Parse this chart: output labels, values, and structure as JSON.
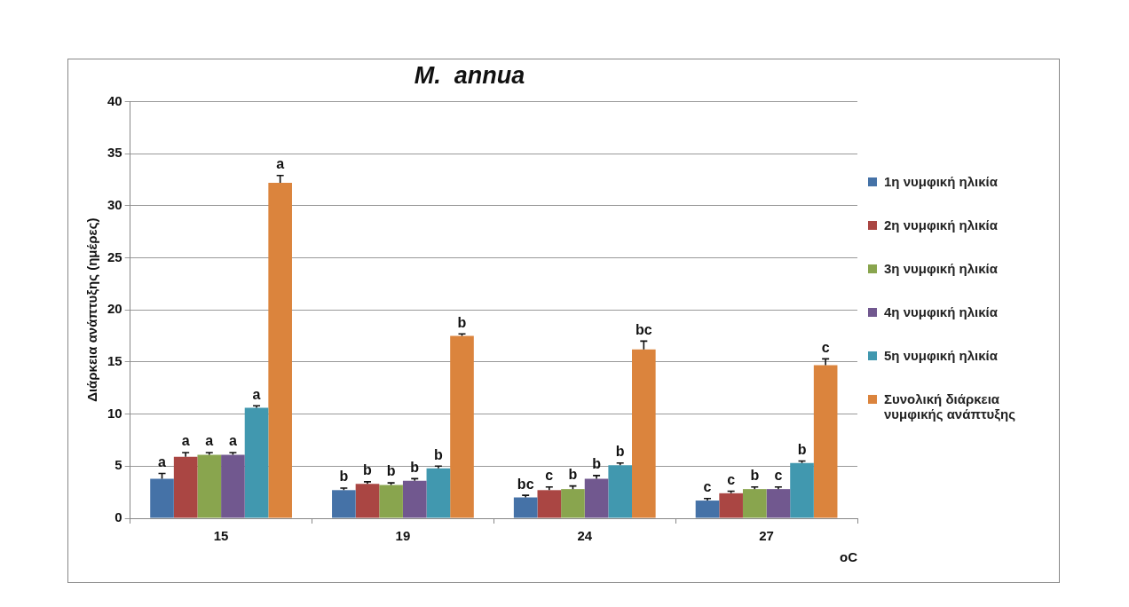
{
  "chart_data": {
    "type": "bar",
    "title": "M.  annua",
    "ylabel": "Διάρκεια ανάπτυξης (ημέρες)",
    "xlabel": "oC",
    "categories": [
      "15",
      "19",
      "24",
      "27"
    ],
    "ylim": [
      0,
      40
    ],
    "yticks": [
      0,
      5,
      10,
      15,
      20,
      25,
      30,
      35,
      40
    ],
    "grid": "y",
    "legend": "right",
    "series": [
      {
        "name": "1η νυμφική ηλικία",
        "color": "#4572a7",
        "values": [
          3.8,
          2.7,
          2.0,
          1.7
        ],
        "errors": [
          0.5,
          0.2,
          0.2,
          0.2
        ],
        "value_labels": [
          "a",
          "b",
          "bc",
          "c"
        ]
      },
      {
        "name": "2η νυμφική ηλικία",
        "color": "#aa4643",
        "values": [
          5.9,
          3.3,
          2.7,
          2.4
        ],
        "errors": [
          0.4,
          0.2,
          0.3,
          0.2
        ],
        "value_labels": [
          "a",
          "b",
          "c",
          "c"
        ]
      },
      {
        "name": "3η νυμφική ηλικία",
        "color": "#89a54e",
        "values": [
          6.1,
          3.2,
          2.8,
          2.8
        ],
        "errors": [
          0.2,
          0.2,
          0.3,
          0.2
        ],
        "value_labels": [
          "a",
          "b",
          "b",
          "b"
        ]
      },
      {
        "name": "4η νυμφική ηλικία",
        "color": "#71588f",
        "values": [
          6.1,
          3.6,
          3.8,
          2.8
        ],
        "errors": [
          0.2,
          0.2,
          0.3,
          0.2
        ],
        "value_labels": [
          "a",
          "b",
          "b",
          "c"
        ]
      },
      {
        "name": "5η νυμφική ηλικία",
        "color": "#4198af",
        "values": [
          10.6,
          4.8,
          5.1,
          5.3
        ],
        "errors": [
          0.2,
          0.2,
          0.2,
          0.2
        ],
        "value_labels": [
          "a",
          "b",
          "b",
          "b"
        ]
      },
      {
        "name": "Συνολική διάρκεια νυμφικής ανάπτυξης",
        "color": "#db843d",
        "values": [
          32.2,
          17.5,
          16.2,
          14.7
        ],
        "errors": [
          0.7,
          0.2,
          0.8,
          0.6
        ],
        "value_labels": [
          "a",
          "b",
          "bc",
          "c"
        ]
      }
    ]
  }
}
